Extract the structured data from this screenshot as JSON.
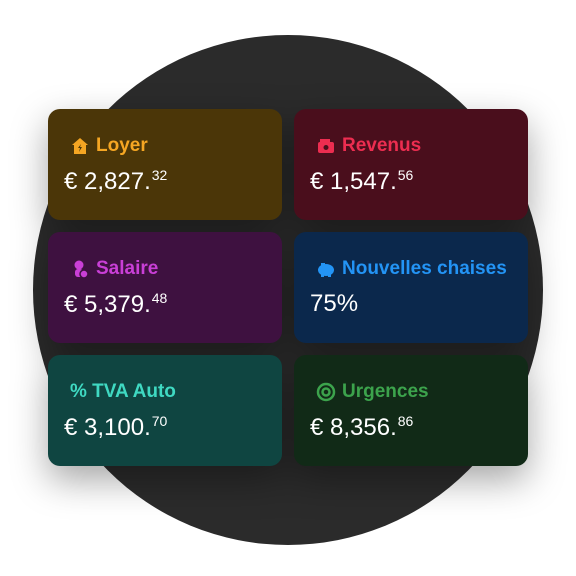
{
  "cards": [
    {
      "title": "Loyer",
      "amount": "€ 2,827.",
      "cents": "32",
      "color": "#f5a623",
      "background": "#4b3608"
    },
    {
      "title": "Revenus",
      "amount": "€ 1,547.",
      "cents": "56",
      "color": "#ec2d50",
      "background": "#4a0e1c"
    },
    {
      "title": "Salaire",
      "amount": "€ 5,379.",
      "cents": "48",
      "color": "#c93fd6",
      "background": "#3e1140"
    },
    {
      "title": "Nouvelles chaises",
      "amount": "75%",
      "color": "#2394f5",
      "background": "#0b284c"
    },
    {
      "title": "% TVA Auto",
      "amount": "€ 3,100.",
      "cents": "70",
      "color": "#3fd9c2",
      "background": "#0f4541"
    },
    {
      "title": "Urgences",
      "amount": "€ 8,356.",
      "cents": "86",
      "color": "#3ca34c",
      "background": "#112a17"
    }
  ]
}
